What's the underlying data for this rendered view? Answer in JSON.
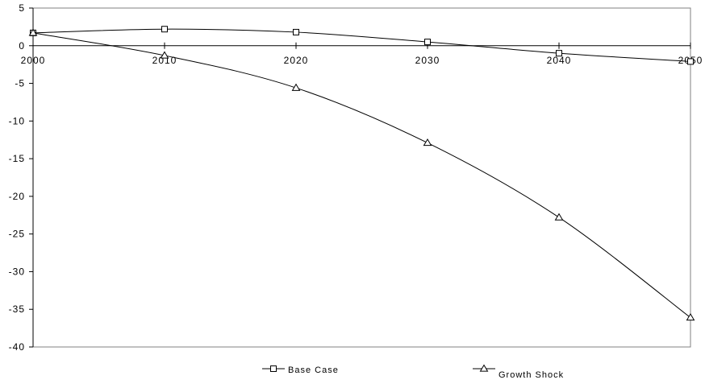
{
  "chart_data": {
    "type": "line",
    "title": "",
    "xlabel": "",
    "ylabel": "",
    "x": [
      2000,
      2010,
      2020,
      2030,
      2040,
      2050
    ],
    "xlim": [
      2000,
      2050
    ],
    "ylim": [
      -40,
      5
    ],
    "x_tick_labels": [
      "2000",
      "2010",
      "2020",
      "2030",
      "2040",
      "2050"
    ],
    "y_tick_labels": [
      "5",
      "0",
      "-5",
      "-10",
      "-15",
      "-20",
      "-25",
      "-30",
      "-35",
      "-40"
    ],
    "y_ticks": [
      5,
      0,
      -5,
      -10,
      -15,
      -20,
      -25,
      -30,
      -35,
      -40
    ],
    "grid": false,
    "legend_position": "bottom",
    "series": [
      {
        "name": "Base Case",
        "marker": "square",
        "color": "#000000",
        "values": [
          1.7,
          2.2,
          1.8,
          0.5,
          -1.0,
          -2.1
        ]
      },
      {
        "name": "Growth Shock",
        "marker": "triangle",
        "color": "#000000",
        "values": [
          1.7,
          -1.3,
          -5.6,
          -12.9,
          -22.8,
          -36.1
        ]
      }
    ]
  }
}
